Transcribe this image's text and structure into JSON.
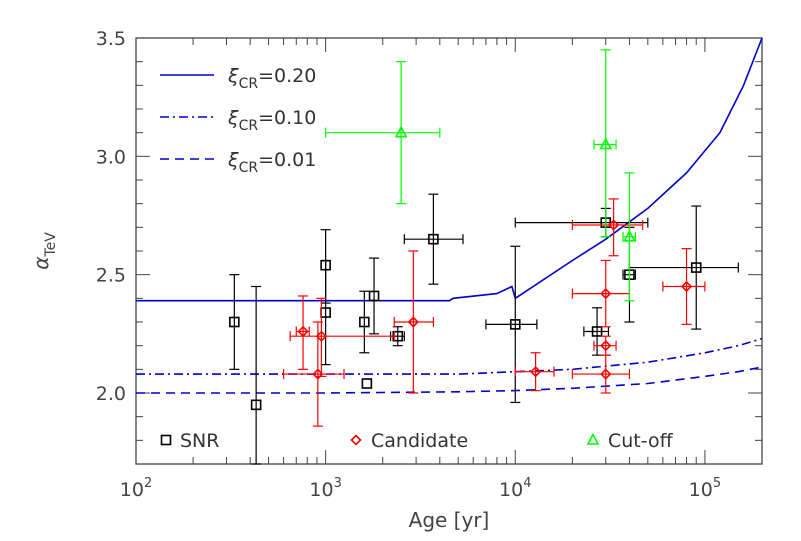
{
  "chart_data": {
    "type": "scatter",
    "xlabel": "Age [yr]",
    "ylabel": "α",
    "ylabel_sub": "TeV",
    "x_scale": "log",
    "xlim": [
      100,
      200000
    ],
    "ylim": [
      1.7,
      3.5
    ],
    "x_ticks": [
      {
        "value": 100,
        "base": "10",
        "exp": "2"
      },
      {
        "value": 1000,
        "base": "10",
        "exp": "3"
      },
      {
        "value": 10000,
        "base": "10",
        "exp": "4"
      },
      {
        "value": 100000,
        "base": "10",
        "exp": "5"
      }
    ],
    "y_ticks": [
      {
        "value": 2.0,
        "label": "2.0"
      },
      {
        "value": 2.5,
        "label": "2.5"
      },
      {
        "value": 3.0,
        "label": "3.0"
      },
      {
        "value": 3.5,
        "label": "3.5"
      }
    ],
    "grid": false,
    "colors": {
      "snr": "#000000",
      "candidate": "#ff0000",
      "cutoff": "#00ff00",
      "model": "#0000cc",
      "axes": "#444444"
    },
    "lines": [
      {
        "symbol": "ξ",
        "sub": "CR",
        "value": "=0.20",
        "style": "solid",
        "points": [
          [
            100,
            2.39
          ],
          [
            1000,
            2.39
          ],
          [
            4500,
            2.39
          ],
          [
            4700,
            2.4
          ],
          [
            8000,
            2.42
          ],
          [
            9600,
            2.45
          ],
          [
            10000,
            2.4
          ],
          [
            20000,
            2.56
          ],
          [
            30000,
            2.65
          ],
          [
            50000,
            2.78
          ],
          [
            80000,
            2.93
          ],
          [
            120000,
            3.1
          ],
          [
            160000,
            3.3
          ],
          [
            200000,
            3.5
          ]
        ]
      },
      {
        "symbol": "ξ",
        "sub": "CR",
        "value": "=0.10",
        "style": "dashdot",
        "points": [
          [
            100,
            2.08
          ],
          [
            1000,
            2.08
          ],
          [
            5000,
            2.08
          ],
          [
            10000,
            2.09
          ],
          [
            20000,
            2.1
          ],
          [
            50000,
            2.13
          ],
          [
            100000,
            2.17
          ],
          [
            150000,
            2.2
          ],
          [
            200000,
            2.23
          ]
        ]
      },
      {
        "symbol": "ξ",
        "sub": "CR",
        "value": "=0.01",
        "style": "dashed",
        "points": [
          [
            100,
            2.0
          ],
          [
            1000,
            2.0
          ],
          [
            5000,
            2.005
          ],
          [
            10000,
            2.01
          ],
          [
            20000,
            2.02
          ],
          [
            50000,
            2.04
          ],
          [
            100000,
            2.07
          ],
          [
            150000,
            2.09
          ],
          [
            200000,
            2.11
          ]
        ]
      }
    ],
    "series": [
      {
        "name": "SNR",
        "marker": "square",
        "points": [
          {
            "x": 330,
            "y": 2.3,
            "xlo": 330,
            "xhi": 330,
            "ylo": 2.1,
            "yhi": 2.5
          },
          {
            "x": 430,
            "y": 1.95,
            "xlo": 430,
            "xhi": 430,
            "ylo": 1.7,
            "yhi": 2.45
          },
          {
            "x": 1000,
            "y": 2.54,
            "xlo": 1000,
            "xhi": 1000,
            "ylo": 2.38,
            "yhi": 2.69
          },
          {
            "x": 1000,
            "y": 2.34,
            "xlo": 1000,
            "xhi": 1000,
            "ylo": 2.12,
            "yhi": 2.56
          },
          {
            "x": 1600,
            "y": 2.3,
            "xlo": 1600,
            "xhi": 1600,
            "ylo": 2.17,
            "yhi": 2.43
          },
          {
            "x": 1800,
            "y": 2.41,
            "xlo": 1800,
            "xhi": 1800,
            "ylo": 2.25,
            "yhi": 2.57
          },
          {
            "x": 1650,
            "y": 2.04,
            "xlo": 1650,
            "xhi": 1650,
            "ylo": 2.04,
            "yhi": 2.04
          },
          {
            "x": 2400,
            "y": 2.24,
            "xlo": 2200,
            "xhi": 2600,
            "ylo": 2.2,
            "yhi": 2.28
          },
          {
            "x": 3700,
            "y": 2.65,
            "xlo": 2600,
            "xhi": 5300,
            "ylo": 2.46,
            "yhi": 2.84
          },
          {
            "x": 10000,
            "y": 2.29,
            "xlo": 7000,
            "xhi": 13000,
            "ylo": 1.96,
            "yhi": 2.62
          },
          {
            "x": 30000,
            "y": 2.72,
            "xlo": 10000,
            "xhi": 50000,
            "ylo": 2.66,
            "yhi": 2.78
          },
          {
            "x": 27000,
            "y": 2.26,
            "xlo": 23000,
            "xhi": 31000,
            "ylo": 2.16,
            "yhi": 2.36
          },
          {
            "x": 40000,
            "y": 2.5,
            "xlo": 37000,
            "xhi": 43000,
            "ylo": 2.3,
            "yhi": 2.7
          },
          {
            "x": 90000,
            "y": 2.53,
            "xlo": 40000,
            "xhi": 150000,
            "ylo": 2.27,
            "yhi": 2.79
          }
        ]
      },
      {
        "name": "Candidate",
        "marker": "diamond",
        "points": [
          {
            "x": 760,
            "y": 2.26,
            "xlo": 700,
            "xhi": 820,
            "ylo": 2.1,
            "yhi": 2.41
          },
          {
            "x": 950,
            "y": 2.24,
            "xlo": 650,
            "xhi": 2300,
            "ylo": 2.07,
            "yhi": 2.4
          },
          {
            "x": 910,
            "y": 2.08,
            "xlo": 600,
            "xhi": 1250,
            "ylo": 1.86,
            "yhi": 2.3
          },
          {
            "x": 2900,
            "y": 2.3,
            "xlo": 2300,
            "xhi": 3700,
            "ylo": 2.0,
            "yhi": 2.6
          },
          {
            "x": 12800,
            "y": 2.09,
            "xlo": 10000,
            "xhi": 16000,
            "ylo": 2.01,
            "yhi": 2.17
          },
          {
            "x": 33000,
            "y": 2.71,
            "xlo": 20000,
            "xhi": 47000,
            "ylo": 2.58,
            "yhi": 2.82
          },
          {
            "x": 30000,
            "y": 2.42,
            "xlo": 20000,
            "xhi": 40000,
            "ylo": 2.28,
            "yhi": 2.56
          },
          {
            "x": 30000,
            "y": 2.2,
            "xlo": 26000,
            "xhi": 34000,
            "ylo": 2.16,
            "yhi": 2.24
          },
          {
            "x": 30000,
            "y": 2.08,
            "xlo": 20000,
            "xhi": 40000,
            "ylo": 2.0,
            "yhi": 2.16
          },
          {
            "x": 80000,
            "y": 2.45,
            "xlo": 60000,
            "xhi": 100000,
            "ylo": 2.29,
            "yhi": 2.61
          }
        ]
      },
      {
        "name": "Cut-off",
        "marker": "triangle",
        "points": [
          {
            "x": 2500,
            "y": 3.1,
            "xlo": 1000,
            "xhi": 4000,
            "ylo": 2.8,
            "yhi": 3.4
          },
          {
            "x": 30000,
            "y": 3.05,
            "xlo": 26000,
            "xhi": 34000,
            "ylo": 2.66,
            "yhi": 3.45
          },
          {
            "x": 40000,
            "y": 2.66,
            "xlo": 37000,
            "xhi": 43000,
            "ylo": 2.39,
            "yhi": 2.93
          }
        ]
      }
    ]
  }
}
